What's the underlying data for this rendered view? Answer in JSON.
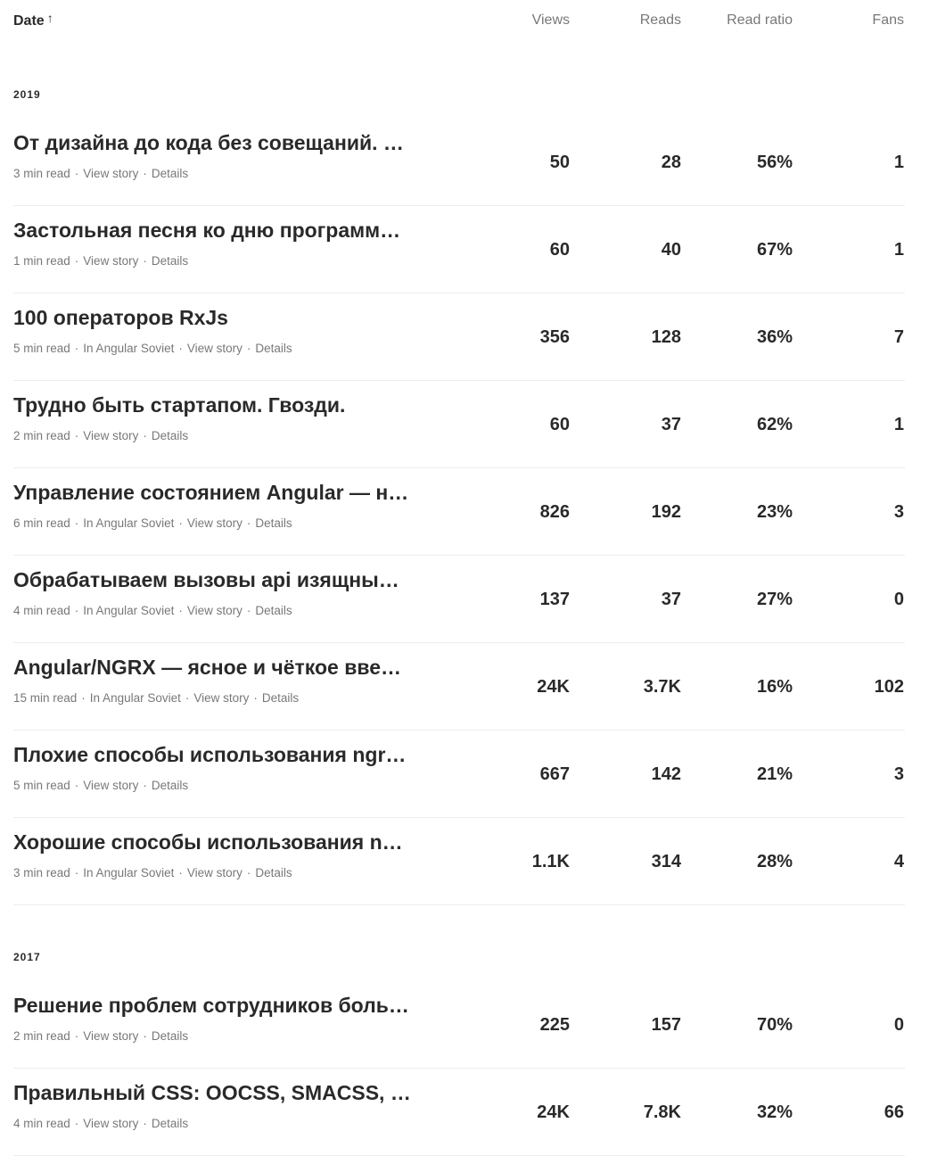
{
  "header": {
    "date": "Date",
    "views": "Views",
    "reads": "Reads",
    "read_ratio": "Read ratio",
    "fans": "Fans"
  },
  "groups": [
    {
      "year": "2019",
      "stories": [
        {
          "title": "От дизайна до кода без совещаний. Как мы с дизайнером перестали ругаться",
          "read_time": "3 min read",
          "publication": "",
          "views": "50",
          "reads": "28",
          "ratio": "56%",
          "fans": "1"
        },
        {
          "title": "Застольная песня ко дню программиста",
          "read_time": "1 min read",
          "publication": "",
          "views": "60",
          "reads": "40",
          "ratio": "67%",
          "fans": "1"
        },
        {
          "title": "100 операторов RxJs",
          "read_time": "5 min read",
          "publication": "In Angular Soviet",
          "views": "356",
          "reads": "128",
          "ratio": "36%",
          "fans": "7"
        },
        {
          "title": "Трудно быть стартапом. Гвозди.",
          "read_time": "2 min read",
          "publication": "",
          "views": "60",
          "reads": "37",
          "ratio": "62%",
          "fans": "1"
        },
        {
          "title": "Управление состоянием Angular — не только NGRX",
          "read_time": "6 min read",
          "publication": "In Angular Soviet",
          "views": "826",
          "reads": "192",
          "ratio": "23%",
          "fans": "3"
        },
        {
          "title": "Обрабатываем вызовы api изящным способом",
          "read_time": "4 min read",
          "publication": "In Angular Soviet",
          "views": "137",
          "reads": "37",
          "ratio": "27%",
          "fans": "0"
        },
        {
          "title": "Angular/NGRX — ясное и чёткое введение для начинающих",
          "read_time": "15 min read",
          "publication": "In Angular Soviet",
          "views": "24K",
          "reads": "3.7K",
          "ratio": "16%",
          "fans": "102"
        },
        {
          "title": "Плохие способы использования ngrx в Angular",
          "read_time": "5 min read",
          "publication": "",
          "views": "667",
          "reads": "142",
          "ratio": "21%",
          "fans": "3"
        },
        {
          "title": "Хорошие способы использования ngrx в Angular",
          "read_time": "3 min read",
          "publication": "In Angular Soviet",
          "views": "1.1K",
          "reads": "314",
          "ratio": "28%",
          "fans": "4"
        }
      ]
    },
    {
      "year": "2017",
      "stories": [
        {
          "title": "Решение проблем сотрудников больших компаний",
          "read_time": "2 min read",
          "publication": "",
          "views": "225",
          "reads": "157",
          "ratio": "70%",
          "fans": "0"
        },
        {
          "title": "Правильный CSS: OOCSS, SMACSS, BEM, MCSS",
          "read_time": "4 min read",
          "publication": "",
          "views": "24K",
          "reads": "7.8K",
          "ratio": "32%",
          "fans": "66"
        }
      ]
    }
  ],
  "labels": {
    "view_story": "View story",
    "details": "Details",
    "dot": "·"
  },
  "icons": {
    "sort": "arrow-up-icon"
  }
}
